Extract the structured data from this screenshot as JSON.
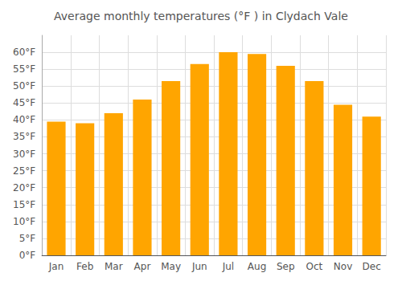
{
  "chart_data": {
    "type": "bar",
    "title": "Average monthly temperatures (°F ) in Clydach Vale",
    "categories": [
      "Jan",
      "Feb",
      "Mar",
      "Apr",
      "May",
      "Jun",
      "Jul",
      "Aug",
      "Sep",
      "Oct",
      "Nov",
      "Dec"
    ],
    "values": [
      39.5,
      39.0,
      42.0,
      46.0,
      51.5,
      56.5,
      60.0,
      59.5,
      56.0,
      51.5,
      44.5,
      41.0
    ],
    "color": "#FFA500",
    "ylim": [
      0,
      65
    ],
    "yticks": [
      {
        "value": 0,
        "label": "0°F"
      },
      {
        "value": 5,
        "label": "5°F"
      },
      {
        "value": 10,
        "label": "10°F"
      },
      {
        "value": 15,
        "label": "15°F"
      },
      {
        "value": 20,
        "label": "20°F"
      },
      {
        "value": 25,
        "label": "25°F"
      },
      {
        "value": 30,
        "label": "30°F"
      },
      {
        "value": 35,
        "label": "35°F"
      },
      {
        "value": 40,
        "label": "40°F"
      },
      {
        "value": 45,
        "label": "45°F"
      },
      {
        "value": 50,
        "label": "50°F"
      },
      {
        "value": 55,
        "label": "55°F"
      },
      {
        "value": 60,
        "label": "60°F"
      }
    ],
    "grid": true
  }
}
